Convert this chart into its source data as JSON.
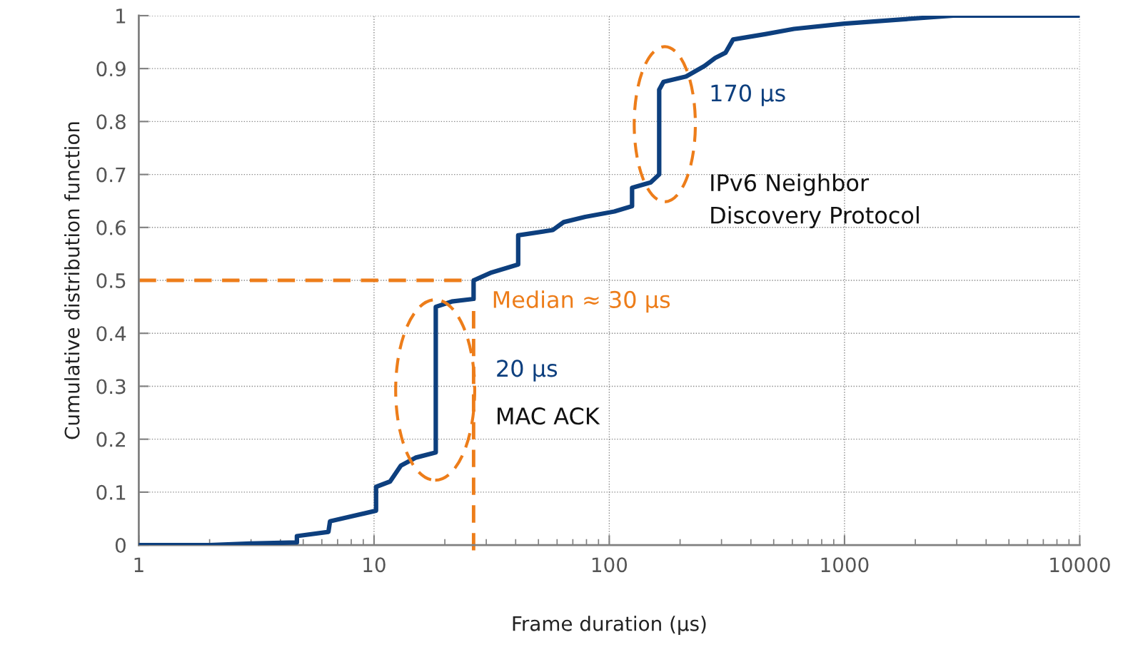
{
  "chart_data": {
    "type": "line",
    "xlabel": "Frame duration (µs)",
    "ylabel": "Cumulative distribution function",
    "log": "x",
    "xlim": [
      1,
      10000
    ],
    "xticks": [
      1,
      10,
      100,
      1000,
      10000
    ],
    "ylim": [
      0,
      1
    ],
    "yticks": [
      0,
      0.1,
      0.2,
      0.3,
      0.4,
      0.5,
      0.6,
      0.7,
      0.8,
      0.9,
      1
    ],
    "grid": true,
    "marker": "none",
    "line_style": "solid",
    "series": [
      {
        "color": "#0d3f7e",
        "x": [
          1,
          2,
          3,
          4.7,
          4.7,
          6.4,
          6.5,
          10.2,
          10.2,
          11.7,
          13,
          15,
          18.3,
          18.3,
          21.4,
          26.5,
          26.5,
          31.6,
          41,
          41,
          57.5,
          64,
          79,
          105,
          125,
          125,
          150,
          163,
          163,
          170,
          212,
          254,
          282,
          312,
          336,
          460,
          610,
          1000,
          1770,
          2900,
          10000
        ],
        "values": [
          0,
          0,
          0.003,
          0.005,
          0.017,
          0.025,
          0.045,
          0.065,
          0.11,
          0.12,
          0.15,
          0.165,
          0.175,
          0.45,
          0.46,
          0.465,
          0.5,
          0.515,
          0.53,
          0.585,
          0.595,
          0.61,
          0.62,
          0.63,
          0.64,
          0.675,
          0.685,
          0.7,
          0.86,
          0.875,
          0.885,
          0.905,
          0.92,
          0.93,
          0.955,
          0.965,
          0.975,
          0.985,
          0.993,
          1,
          1
        ]
      }
    ],
    "ref_lines": [
      {
        "axis": "y",
        "value": 0.5,
        "color": "#ed7d1a",
        "line_style": "dashed"
      },
      {
        "axis": "x",
        "value": 26.5,
        "color": "#ed7d1a",
        "line_style": "dashed"
      }
    ],
    "annotations": [
      "170 µs",
      "IPv6 Neighbor\nDiscovery Protocol",
      "Median ≈ 30 µs",
      "20 µs",
      "MAC ACK"
    ]
  }
}
